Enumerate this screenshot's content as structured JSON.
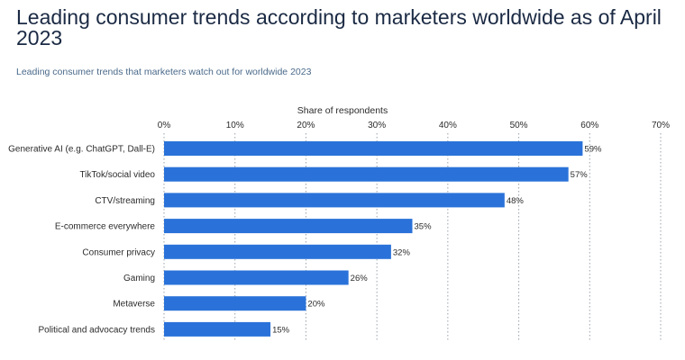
{
  "header": {
    "title": "Leading consumer trends according to marketers worldwide as of April 2023",
    "subtitle": "Leading consumer trends that marketers watch out for worldwide 2023"
  },
  "colors": {
    "bar": "#2a72d9",
    "grid": "#9aa3ad",
    "title": "#1b2a44"
  },
  "chart_data": {
    "type": "bar",
    "orientation": "horizontal",
    "xlabel": "Share of respondents",
    "xlabel_position": "top",
    "xlim": [
      0,
      70
    ],
    "xticks": [
      "0%",
      "10%",
      "20%",
      "30%",
      "40%",
      "50%",
      "60%",
      "70%"
    ],
    "grid": true,
    "categories": [
      "Generative AI (e.g. ChatGPT, Dall-E)",
      "TikTok/social video",
      "CTV/streaming",
      "E-commerce everywhere",
      "Consumer privacy",
      "Gaming",
      "Metaverse",
      "Political and advocacy trends"
    ],
    "values": [
      59,
      57,
      48,
      35,
      32,
      26,
      20,
      15
    ],
    "data_labels": [
      "59%",
      "57%",
      "48%",
      "35%",
      "32%",
      "26%",
      "20%",
      "15%"
    ]
  }
}
